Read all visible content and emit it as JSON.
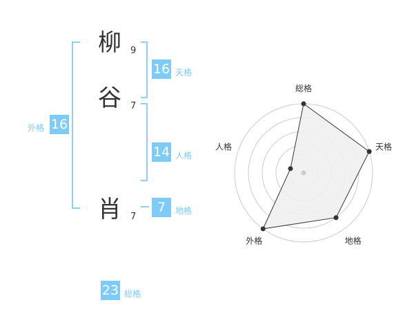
{
  "name": {
    "chars": [
      {
        "char": "柳",
        "strokes": "9"
      },
      {
        "char": "谷",
        "strokes": "7"
      },
      {
        "char": "肖",
        "strokes": "7"
      }
    ]
  },
  "kaku": {
    "tenkaku": {
      "label": "天格",
      "value": "16"
    },
    "jinkaku": {
      "label": "人格",
      "value": "14"
    },
    "chikaku": {
      "label": "地格",
      "value": "7"
    },
    "gaikaku": {
      "label": "外格",
      "value": "16"
    },
    "soukaku": {
      "label": "総格",
      "value": "23"
    }
  },
  "accent_color": "#7ecbf7",
  "chart_data": {
    "type": "radar",
    "categories": [
      "総格",
      "天格",
      "地格",
      "外格",
      "人格"
    ],
    "values": [
      5,
      5,
      4,
      5,
      1
    ],
    "range": [
      0,
      5
    ],
    "grid": true
  }
}
